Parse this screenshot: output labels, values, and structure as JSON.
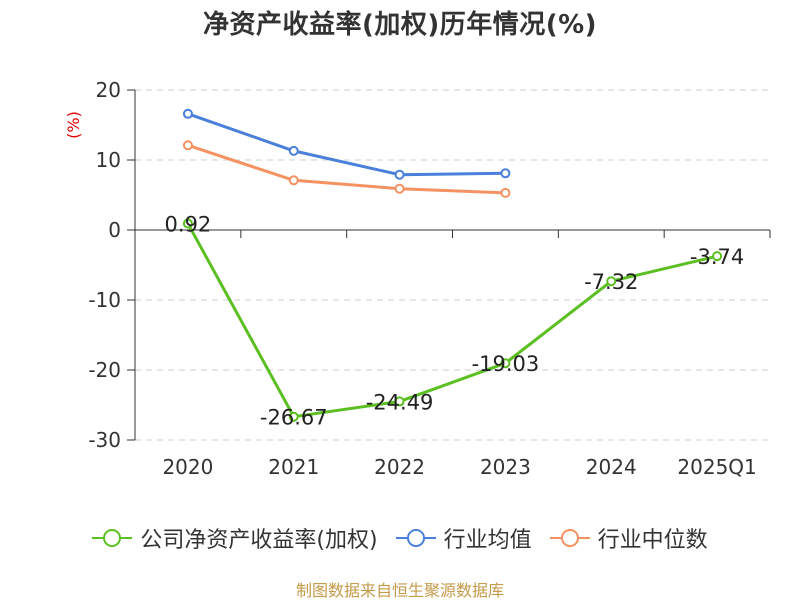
{
  "title": "净资产收益率(加权)历年情况(%)",
  "source": "制图数据来自恒生聚源数据库",
  "chart_data": {
    "type": "line",
    "title": "净资产收益率(加权)历年情况(%)",
    "ylabel": "(%)",
    "xlabel": "",
    "categories": [
      "2020",
      "2021",
      "2022",
      "2023",
      "2024",
      "2025Q1"
    ],
    "ylim": [
      -30,
      20
    ],
    "yticks": [
      20,
      10,
      0,
      -10,
      -20,
      -30
    ],
    "grid": true,
    "legend_position": "bottom",
    "series": [
      {
        "name": "公司净资产收益率(加权)",
        "color": "#5bbf21",
        "values": [
          0.92,
          -26.67,
          -24.49,
          -19.03,
          -7.32,
          -3.74
        ],
        "labels": [
          "0.92",
          "-26.67",
          "-24.49",
          "-19.03",
          "-7.32",
          "-3.74"
        ]
      },
      {
        "name": "行业均值",
        "color": "#4a7fdb",
        "values": [
          16.6,
          11.3,
          7.9,
          8.1,
          null,
          null
        ]
      },
      {
        "name": "行业中位数",
        "color": "#f59262",
        "values": [
          12.1,
          7.1,
          5.9,
          5.3,
          null,
          null
        ]
      }
    ]
  }
}
